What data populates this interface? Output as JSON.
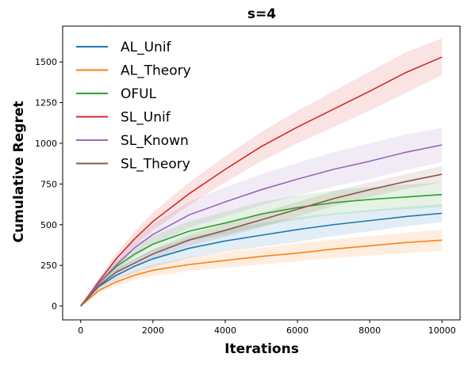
{
  "chart_data": {
    "type": "line",
    "title": "s=4",
    "xlabel": "Iterations",
    "ylabel": "Cumulative Regret",
    "xlim": [
      -500,
      10500
    ],
    "ylim": [
      -85,
      1720
    ],
    "xticks": [
      0,
      2000,
      4000,
      6000,
      8000,
      10000
    ],
    "yticks": [
      0,
      250,
      500,
      750,
      1000,
      1250,
      1500
    ],
    "grid": false,
    "legend_position": "top-left",
    "shaded_band": "mean ± spread",
    "x": [
      0,
      500,
      1000,
      1500,
      2000,
      3000,
      4000,
      5000,
      6000,
      7000,
      8000,
      9000,
      10000
    ],
    "series": [
      {
        "name": "AL_Unif",
        "color": "#1f77b4",
        "values": [
          0,
          120,
          190,
          245,
          290,
          355,
          400,
          435,
          470,
          500,
          525,
          550,
          570
        ],
        "upper": [
          0,
          140,
          225,
          290,
          345,
          420,
          470,
          510,
          545,
          570,
          590,
          610,
          625
        ],
        "lower": [
          0,
          100,
          160,
          205,
          240,
          295,
          335,
          365,
          395,
          430,
          460,
          490,
          515
        ]
      },
      {
        "name": "AL_Theory",
        "color": "#ff7f0e",
        "values": [
          0,
          95,
          150,
          190,
          220,
          255,
          280,
          305,
          325,
          350,
          370,
          390,
          405
        ],
        "upper": [
          0,
          110,
          175,
          220,
          255,
          300,
          330,
          360,
          385,
          410,
          430,
          450,
          470
        ],
        "lower": [
          0,
          80,
          125,
          160,
          185,
          215,
          235,
          255,
          275,
          295,
          310,
          325,
          340
        ]
      },
      {
        "name": "OFUL",
        "color": "#2ca02c",
        "values": [
          0,
          140,
          245,
          320,
          380,
          460,
          510,
          565,
          605,
          635,
          655,
          670,
          685
        ],
        "upper": [
          0,
          160,
          275,
          360,
          430,
          520,
          580,
          640,
          680,
          710,
          730,
          745,
          760
        ],
        "lower": [
          0,
          120,
          215,
          280,
          330,
          400,
          440,
          490,
          530,
          560,
          580,
          595,
          610
        ]
      },
      {
        "name": "SL_Unif",
        "color": "#d62728",
        "values": [
          0,
          150,
          295,
          415,
          520,
          690,
          840,
          980,
          1100,
          1210,
          1320,
          1435,
          1530
        ],
        "upper": [
          0,
          170,
          330,
          460,
          575,
          760,
          920,
          1070,
          1200,
          1320,
          1440,
          1560,
          1645
        ],
        "lower": [
          0,
          130,
          260,
          370,
          465,
          620,
          760,
          890,
          1000,
          1100,
          1200,
          1310,
          1420
        ]
      },
      {
        "name": "SL_Known",
        "color": "#9467bd",
        "values": [
          0,
          140,
          255,
          360,
          440,
          560,
          640,
          715,
          780,
          840,
          890,
          945,
          990
        ],
        "upper": [
          0,
          165,
          295,
          415,
          505,
          640,
          730,
          810,
          880,
          945,
          1000,
          1055,
          1095
        ],
        "lower": [
          0,
          115,
          215,
          305,
          375,
          480,
          550,
          620,
          680,
          735,
          780,
          835,
          885
        ]
      },
      {
        "name": "SL_Theory",
        "color": "#8c564b",
        "values": [
          0,
          125,
          210,
          265,
          320,
          405,
          465,
          530,
          595,
          660,
          715,
          765,
          810
        ],
        "upper": [
          0,
          140,
          230,
          290,
          350,
          440,
          505,
          575,
          640,
          705,
          760,
          810,
          860
        ],
        "lower": [
          0,
          110,
          190,
          240,
          290,
          370,
          425,
          485,
          550,
          615,
          670,
          720,
          760
        ]
      }
    ]
  }
}
